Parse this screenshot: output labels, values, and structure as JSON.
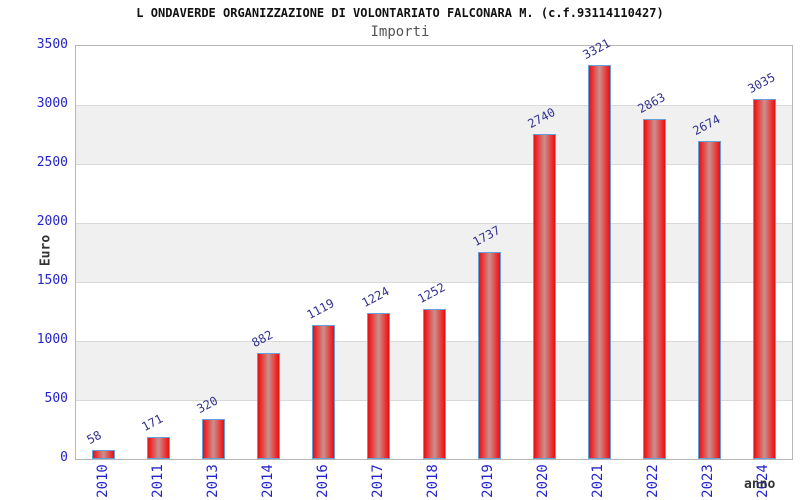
{
  "chart_data": {
    "type": "bar",
    "title": "L ONDAVERDE ORGANIZZAZIONE DI VOLONTARIATO FALCONARA M. (c.f.93114110427)",
    "subtitle": "Importi",
    "xlabel": "anno",
    "ylabel": "Euro",
    "categories": [
      "2010",
      "2011",
      "2013",
      "2014",
      "2016",
      "2017",
      "2018",
      "2019",
      "2020",
      "2021",
      "2022",
      "2023",
      "2024"
    ],
    "values": [
      58,
      171,
      320,
      882,
      1119,
      1224,
      1252,
      1737,
      2740,
      3321,
      2863,
      2674,
      3035
    ],
    "ylim": [
      0,
      3500
    ],
    "ytick_step": 500,
    "grid": "horizontal-bands-alternating",
    "legend": "none",
    "colors": {
      "bar_edge_red": "#e01313",
      "bar_mid_red": "#ec2a2a",
      "bar_center_highlight": "#c9908f",
      "bar_border_blue": "#64a0dc",
      "tick_label_blue": "#2424cc",
      "value_label_navy": "#32328f",
      "band_gray": "#f0f0f0",
      "gridline_gray": "#d9d9d9",
      "plot_border_gray": "#b6b6b6",
      "title_black": "#111111",
      "subtitle_gray": "#555555",
      "axis_title_gray": "#333333"
    }
  }
}
